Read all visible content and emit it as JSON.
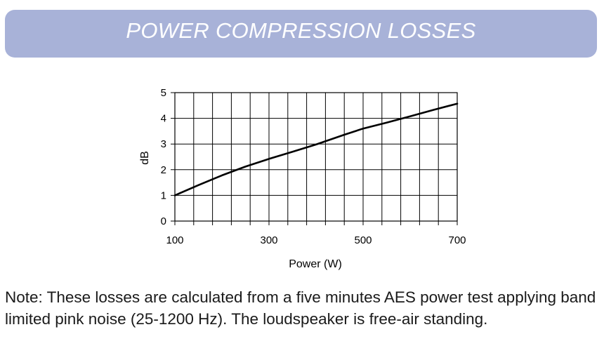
{
  "header": {
    "title": "POWER COMPRESSION LOSSES"
  },
  "colors": {
    "banner": "#a8b2d8",
    "banner_text": "#ffffff",
    "grid": "#000000",
    "line": "#000000"
  },
  "chart_data": {
    "type": "line",
    "xlabel": "Power (W)",
    "ylabel": "dB",
    "xlim": [
      100,
      700
    ],
    "ylim": [
      0,
      5
    ],
    "x_ticks": [
      100,
      300,
      500,
      700
    ],
    "x_tick_labels": [
      "100",
      "300",
      "500",
      "700"
    ],
    "y_ticks": [
      0,
      1,
      2,
      3,
      4,
      5
    ],
    "y_tick_labels": [
      "0",
      "1",
      "2",
      "3",
      "4",
      "5"
    ],
    "x_grid_step": 40,
    "y_grid_step": 1,
    "grid": true,
    "legend": "none",
    "series": [
      {
        "x": [
          100,
          150,
          200,
          250,
          300,
          350,
          400,
          460,
          500,
          550,
          600,
          650,
          700
        ],
        "values": [
          1.0,
          1.4,
          1.78,
          2.12,
          2.42,
          2.7,
          2.98,
          3.36,
          3.6,
          3.83,
          4.08,
          4.33,
          4.57
        ]
      }
    ]
  },
  "note": {
    "text": "Note: These losses are calculated from a five minutes AES power test applying band limited pink noise (25-1200 Hz). The loudspeaker is free-air standing."
  }
}
